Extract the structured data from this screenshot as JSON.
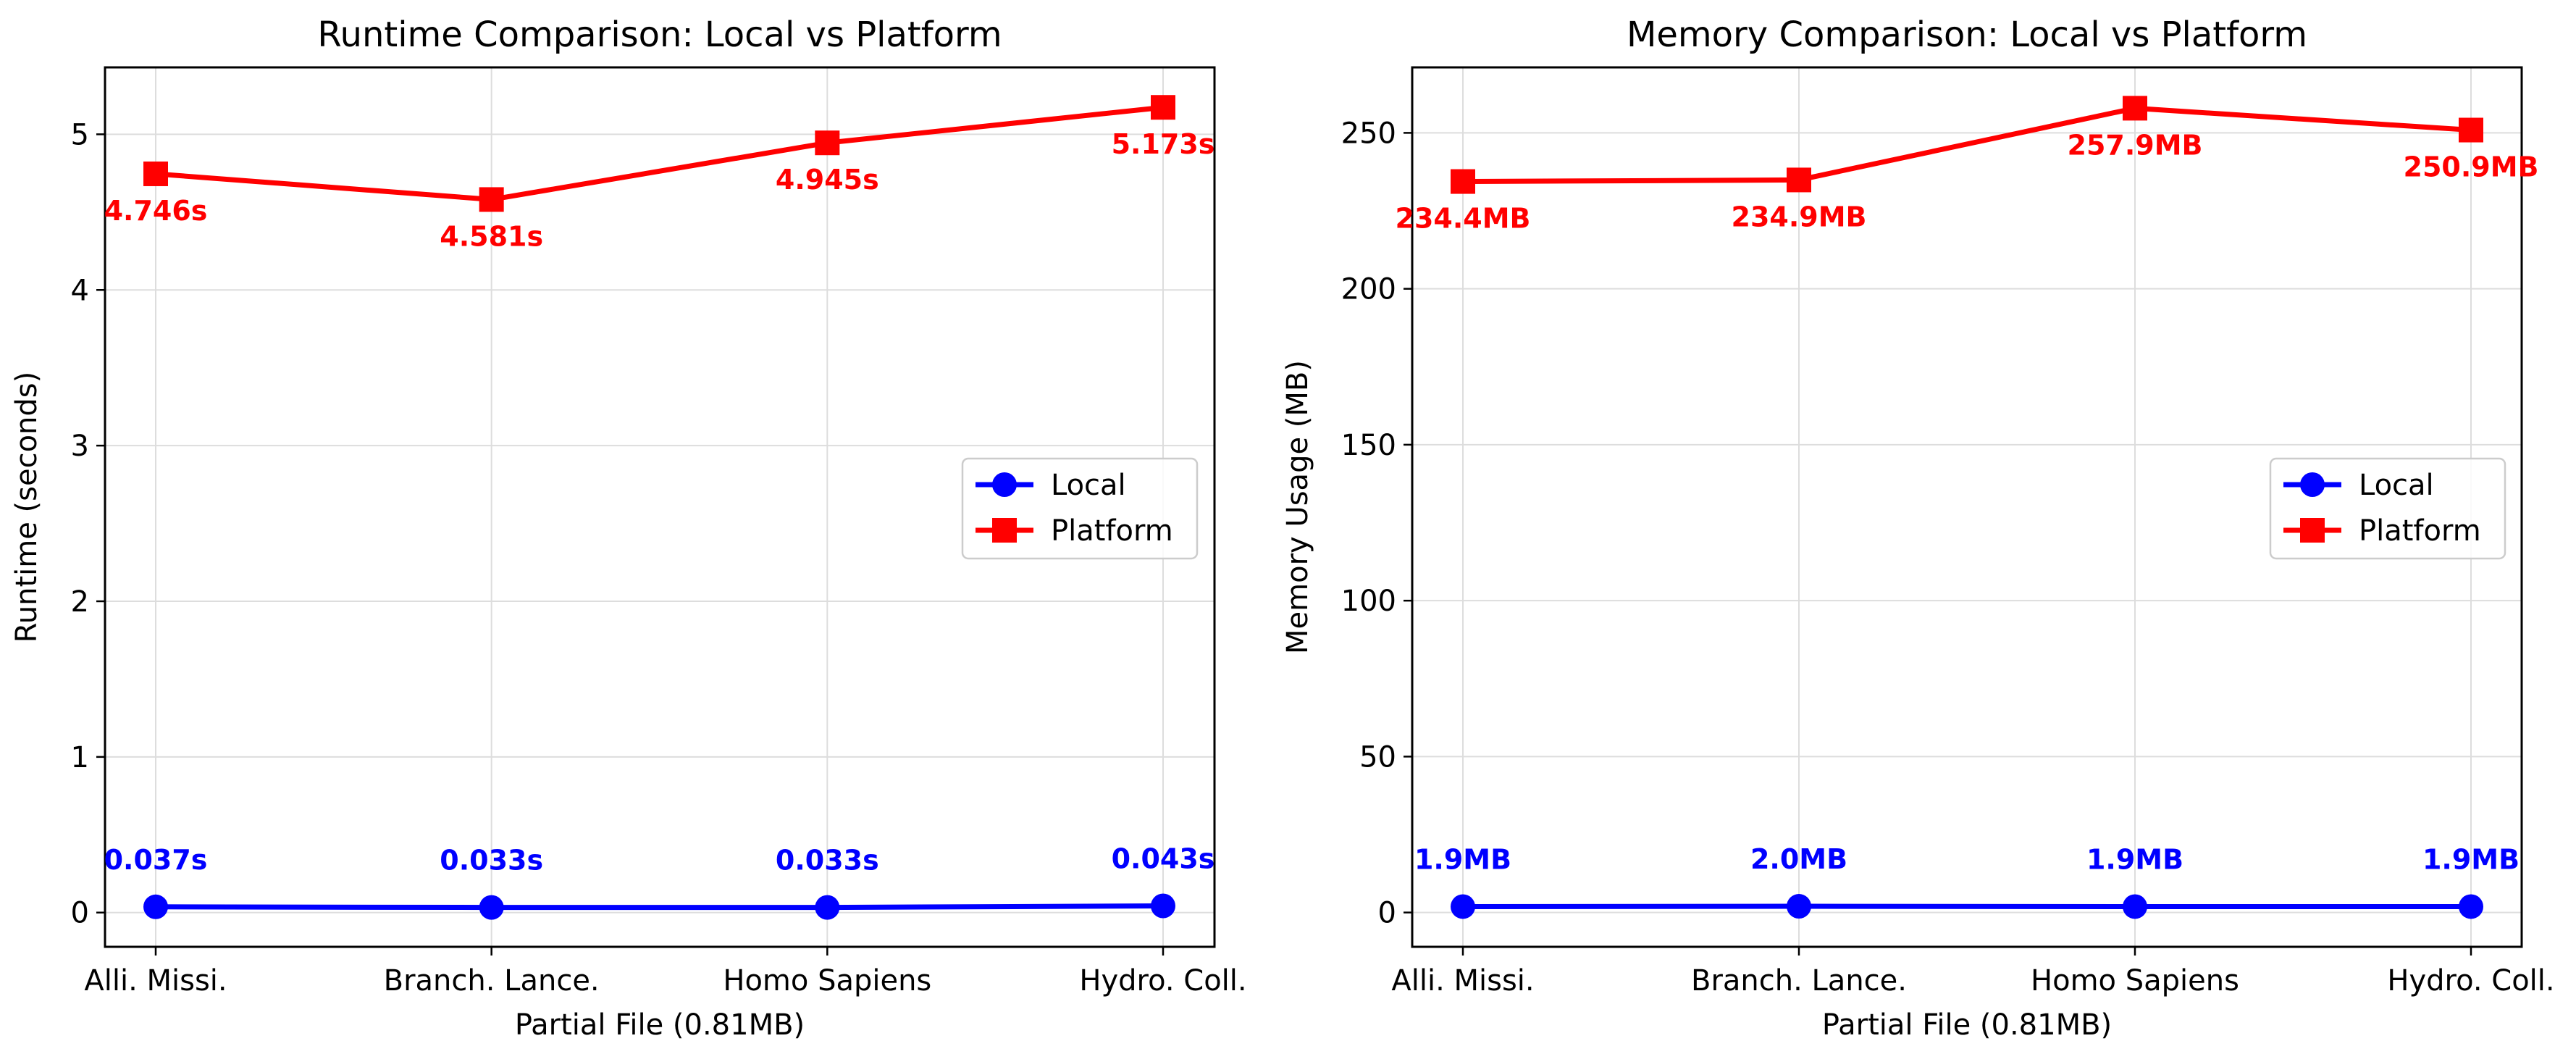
{
  "colors": {
    "local": "#0000ff",
    "platform": "#ff0000",
    "grid": "#dddddd",
    "axis": "#000000",
    "text": "#000000"
  },
  "chart_data": [
    {
      "type": "line",
      "title": "Runtime Comparison: Local vs Platform",
      "xlabel": "Partial File (0.81MB)",
      "ylabel": "Runtime (seconds)",
      "categories": [
        "Alli. Missi.",
        "Branch. Lance.",
        "Homo Sapiens",
        "Hydro. Coll."
      ],
      "ylim": [
        -0.22,
        5.43
      ],
      "yticks": [
        0,
        1,
        2,
        3,
        4,
        5
      ],
      "grid": true,
      "legend": "center-right",
      "series": [
        {
          "name": "Local",
          "marker": "circle",
          "color": "#0000ff",
          "values": [
            0.037,
            0.033,
            0.033,
            0.043
          ],
          "labels": [
            "0.037s",
            "0.033s",
            "0.033s",
            "0.043s"
          ]
        },
        {
          "name": "Platform",
          "marker": "square",
          "color": "#ff0000",
          "values": [
            4.746,
            4.581,
            4.945,
            5.173
          ],
          "labels": [
            "4.746s",
            "4.581s",
            "4.945s",
            "5.173s"
          ]
        }
      ]
    },
    {
      "type": "line",
      "title": "Memory Comparison: Local vs Platform",
      "xlabel": "Partial File (0.81MB)",
      "ylabel": "Memory Usage (MB)",
      "categories": [
        "Alli. Missi.",
        "Branch. Lance.",
        "Homo Sapiens",
        "Hydro. Coll."
      ],
      "ylim": [
        -11,
        271
      ],
      "yticks": [
        0,
        50,
        100,
        150,
        200,
        250
      ],
      "grid": true,
      "legend": "center-right",
      "series": [
        {
          "name": "Local",
          "marker": "circle",
          "color": "#0000ff",
          "values": [
            1.9,
            2.0,
            1.9,
            1.9
          ],
          "labels": [
            "1.9MB",
            "2.0MB",
            "1.9MB",
            "1.9MB"
          ]
        },
        {
          "name": "Platform",
          "marker": "square",
          "color": "#ff0000",
          "values": [
            234.4,
            234.9,
            257.9,
            250.9
          ],
          "labels": [
            "234.4MB",
            "234.9MB",
            "257.9MB",
            "250.9MB"
          ]
        }
      ]
    }
  ]
}
